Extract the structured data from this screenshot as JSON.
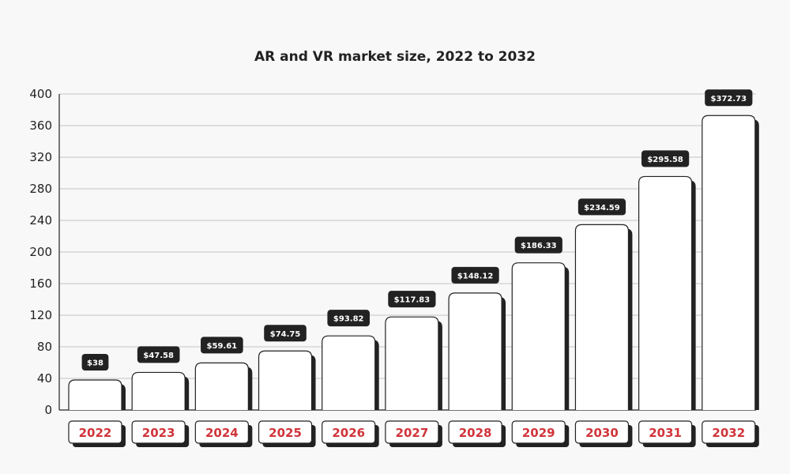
{
  "chart_data": {
    "type": "bar",
    "title": "AR and VR market size, 2022 to 2032",
    "xlabel": "",
    "ylabel": "",
    "categories": [
      "2022",
      "2023",
      "2024",
      "2025",
      "2026",
      "2027",
      "2028",
      "2029",
      "2030",
      "2031",
      "2032"
    ],
    "values": [
      38,
      47.58,
      59.61,
      74.75,
      93.82,
      117.83,
      148.12,
      186.33,
      234.59,
      295.58,
      372.73
    ],
    "data_labels": [
      "$38",
      "$47.58",
      "$59.61",
      "$74.75",
      "$93.82",
      "$117.83",
      "$148.12",
      "$186.33",
      "$234.59",
      "$295.58",
      "$372.73"
    ],
    "ylim": [
      0,
      400
    ],
    "yticks": [
      0,
      40,
      80,
      120,
      160,
      200,
      240,
      280,
      320,
      360,
      400
    ],
    "grid": true,
    "legend": "none",
    "colors": {
      "bar_fill": "#ffffff",
      "bar_outline": "#222222",
      "label_bg": "#222222",
      "category_text": "#d0343a",
      "gridline": "#c4c4c4",
      "background": "#f8f8f8"
    }
  }
}
